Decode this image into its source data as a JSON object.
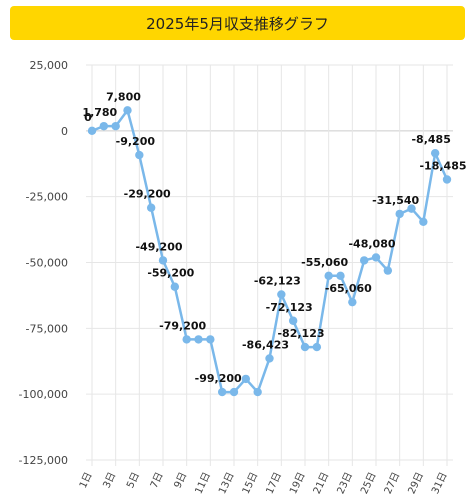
{
  "chart_data": {
    "type": "line",
    "title": "2025年5月収支推移グラフ",
    "xlabel": "",
    "ylabel": "",
    "ylim": [
      -125000,
      25000
    ],
    "yticks": [
      25000,
      0,
      -25000,
      -50000,
      -75000,
      -100000,
      -125000
    ],
    "ytick_labels": [
      "25,000",
      "0",
      "-25,000",
      "-50,000",
      "-75,000",
      "-100,000",
      "-125,000"
    ],
    "categories": [
      "1日",
      "2日",
      "3日",
      "4日",
      "5日",
      "6日",
      "7日",
      "8日",
      "9日",
      "10日",
      "11日",
      "12日",
      "13日",
      "14日",
      "15日",
      "16日",
      "17日",
      "18日",
      "19日",
      "20日",
      "21日",
      "22日",
      "23日",
      "24日",
      "25日",
      "26日",
      "27日",
      "28日",
      "29日",
      "30日",
      "31日"
    ],
    "xtick_labels": [
      "1日",
      "3日",
      "5日",
      "7日",
      "9日",
      "11日",
      "13日",
      "15日",
      "17日",
      "19日",
      "21日",
      "23日",
      "25日",
      "27日",
      "29日",
      "31日"
    ],
    "grid": true,
    "series": [
      {
        "values": [
          0,
          1780,
          1780,
          7800,
          -9200,
          -29200,
          -49200,
          -59200,
          -79200,
          -79200,
          -79200,
          -99200,
          -99200,
          -94200,
          -99200,
          -86423,
          -62123,
          -72123,
          -82123,
          -82123,
          -55060,
          -55060,
          -65060,
          -49200,
          -48080,
          -53080,
          -31540,
          -29540,
          -34540,
          -8485,
          -18485
        ]
      }
    ],
    "data_labels": [
      {
        "index": 0,
        "text": "0"
      },
      {
        "index": 1,
        "text": "1,780"
      },
      {
        "index": 3,
        "text": "7,800"
      },
      {
        "index": 4,
        "text": "-9,200"
      },
      {
        "index": 5,
        "text": "-29,200"
      },
      {
        "index": 6,
        "text": "-49,200"
      },
      {
        "index": 7,
        "text": "-59,200"
      },
      {
        "index": 8,
        "text": "-79,200"
      },
      {
        "index": 11,
        "text": "-99,200"
      },
      {
        "index": 15,
        "text": "-86,423"
      },
      {
        "index": 16,
        "text": "-62,123"
      },
      {
        "index": 17,
        "text": "-72,123"
      },
      {
        "index": 18,
        "text": "-82,123"
      },
      {
        "index": 20,
        "text": "-55,060"
      },
      {
        "index": 22,
        "text": "-65,060"
      },
      {
        "index": 24,
        "text": "-48,080"
      },
      {
        "index": 26,
        "text": "-31,540"
      },
      {
        "index": 29,
        "text": "-8,485"
      },
      {
        "index": 30,
        "text": "-18,485"
      }
    ]
  },
  "colors": {
    "title_bg": "#ffd600",
    "line": "#7ab8ea",
    "grid": "#e6e6e6",
    "zero_line": "#cccccc"
  }
}
